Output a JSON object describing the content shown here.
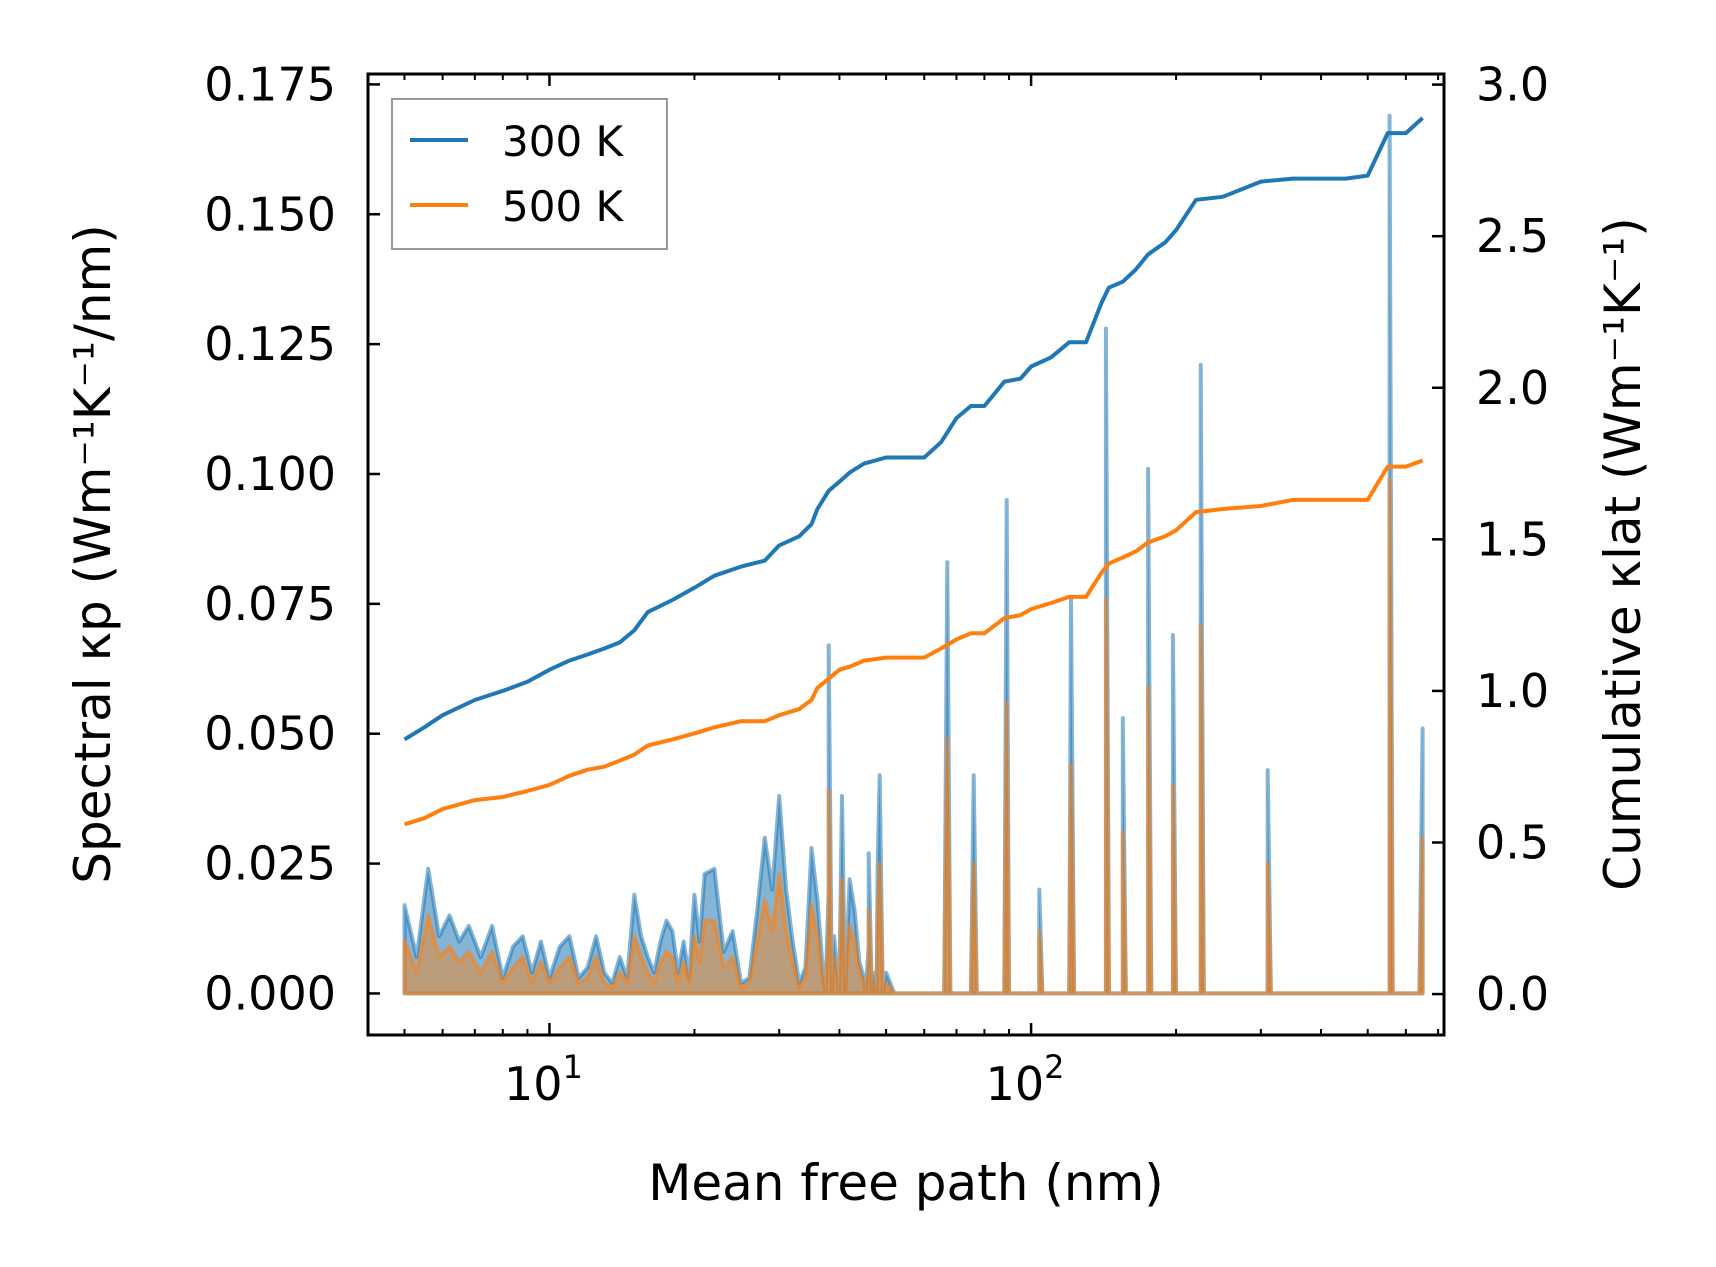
{
  "chart_data": {
    "type": "line",
    "xscale": "log",
    "xlabel": "Mean free path (nm)",
    "ylabel_left": "Spectral κp (Wm⁻¹K⁻¹/nm)",
    "ylabel_right": "Cumulative κlat (Wm⁻¹K⁻¹)",
    "xlim": [
      4.2,
      720
    ],
    "ylim_left": [
      -0.008,
      0.177
    ],
    "ylim_right": [
      -0.135,
      3.035
    ],
    "x_ticks": [
      {
        "value": 10,
        "base": "10",
        "exp": "1"
      },
      {
        "value": 100,
        "base": "10",
        "exp": "2"
      }
    ],
    "y_left_ticks": [
      "0.000",
      "0.025",
      "0.050",
      "0.075",
      "0.100",
      "0.125",
      "0.150",
      "0.175"
    ],
    "y_right_ticks": [
      "0.0",
      "0.5",
      "1.0",
      "1.5",
      "2.0",
      "2.5",
      "3.0"
    ],
    "legend": {
      "position": "top-left",
      "entries": [
        {
          "label": "300 K",
          "color": "#1f77b4"
        },
        {
          "label": "500 K",
          "color": "#ff7f0e"
        }
      ]
    },
    "series": [
      {
        "name": "300 K cumulative",
        "axis": "right",
        "color": "#1f77b4",
        "x": [
          5,
          5.5,
          6,
          7,
          8,
          9,
          10,
          11,
          12,
          13,
          14,
          15,
          16,
          18,
          20,
          22,
          25,
          28,
          30,
          33,
          35,
          36,
          38,
          40,
          42,
          45,
          50,
          55,
          60,
          65,
          70,
          75,
          80,
          88,
          95,
          100,
          110,
          120,
          130,
          140,
          145,
          155,
          165,
          175,
          190,
          200,
          220,
          250,
          300,
          350,
          400,
          450,
          500,
          550,
          600,
          650
        ],
        "y": [
          0.84,
          0.88,
          0.92,
          0.97,
          1.0,
          1.03,
          1.07,
          1.1,
          1.12,
          1.14,
          1.16,
          1.2,
          1.26,
          1.3,
          1.34,
          1.38,
          1.41,
          1.43,
          1.48,
          1.51,
          1.55,
          1.6,
          1.66,
          1.69,
          1.72,
          1.75,
          1.77,
          1.77,
          1.77,
          1.82,
          1.9,
          1.94,
          1.94,
          2.02,
          2.03,
          2.07,
          2.1,
          2.15,
          2.15,
          2.28,
          2.33,
          2.35,
          2.39,
          2.44,
          2.48,
          2.52,
          2.62,
          2.63,
          2.68,
          2.69,
          2.69,
          2.69,
          2.7,
          2.84,
          2.84,
          2.89
        ]
      },
      {
        "name": "500 K cumulative",
        "axis": "right",
        "color": "#ff7f0e",
        "x": [
          5,
          5.5,
          6,
          7,
          8,
          9,
          10,
          11,
          12,
          13,
          14,
          15,
          16,
          18,
          20,
          22,
          25,
          28,
          30,
          33,
          35,
          36,
          38,
          40,
          42,
          45,
          50,
          55,
          60,
          65,
          70,
          75,
          80,
          88,
          95,
          100,
          110,
          120,
          130,
          140,
          145,
          155,
          165,
          175,
          190,
          200,
          220,
          250,
          300,
          350,
          400,
          450,
          500,
          550,
          600,
          650
        ],
        "y": [
          0.56,
          0.58,
          0.61,
          0.64,
          0.65,
          0.67,
          0.69,
          0.72,
          0.74,
          0.75,
          0.77,
          0.79,
          0.82,
          0.84,
          0.86,
          0.88,
          0.9,
          0.9,
          0.92,
          0.94,
          0.97,
          1.01,
          1.04,
          1.07,
          1.08,
          1.1,
          1.11,
          1.11,
          1.11,
          1.14,
          1.17,
          1.19,
          1.19,
          1.24,
          1.25,
          1.27,
          1.29,
          1.31,
          1.31,
          1.39,
          1.42,
          1.44,
          1.46,
          1.49,
          1.51,
          1.53,
          1.59,
          1.6,
          1.61,
          1.63,
          1.63,
          1.63,
          1.63,
          1.74,
          1.74,
          1.76
        ]
      },
      {
        "name": "300 K spectral",
        "axis": "left",
        "color": "#1f77b4",
        "x": [
          5,
          5.3,
          5.6,
          5.9,
          6.2,
          6.5,
          6.8,
          7.2,
          7.6,
          8,
          8.4,
          8.8,
          9.2,
          9.6,
          10,
          10.5,
          11,
          11.5,
          12,
          12.5,
          13,
          13.5,
          14,
          14.5,
          15,
          15.5,
          16,
          16.5,
          17,
          17.5,
          18,
          18.5,
          19,
          19.5,
          20,
          20.5,
          21,
          22,
          23,
          24,
          25,
          26,
          27,
          28,
          29,
          30,
          31,
          32,
          33,
          34,
          35,
          36,
          37,
          38,
          39,
          40,
          41,
          42,
          43,
          44,
          45,
          46,
          47,
          48,
          49,
          50,
          52,
          55,
          60,
          64,
          66,
          68,
          70,
          72,
          75,
          78,
          82,
          86,
          88,
          90,
          95,
          100,
          104,
          110,
          116,
          120,
          125,
          130,
          136,
          140,
          143,
          146,
          150,
          155,
          160,
          165,
          170,
          175,
          180,
          186,
          192,
          197,
          202,
          210,
          218,
          225,
          230,
          240,
          260,
          280,
          300,
          310,
          320,
          340,
          400,
          480,
          540,
          555,
          570,
          590,
          640,
          650
        ],
        "y": [
          0.017,
          0.007,
          0.024,
          0.011,
          0.015,
          0.01,
          0.013,
          0.007,
          0.013,
          0.003,
          0.009,
          0.011,
          0.004,
          0.01,
          0.003,
          0.009,
          0.011,
          0.003,
          0.005,
          0.011,
          0.004,
          0.002,
          0.007,
          0.003,
          0.019,
          0.011,
          0.007,
          0.004,
          0.01,
          0.014,
          0.012,
          0.004,
          0.01,
          0.003,
          0.019,
          0.01,
          0.023,
          0.024,
          0.008,
          0.012,
          0.002,
          0.003,
          0.016,
          0.03,
          0.02,
          0.038,
          0.02,
          0.01,
          0.002,
          0.005,
          0.028,
          0.018,
          0.004,
          0.02,
          0.011,
          0.002,
          0.006,
          0.022,
          0.016,
          0.006,
          0.003,
          0.009,
          0.004,
          0.024,
          0.012,
          0.004,
          0.0,
          0.0,
          0.0,
          0.0,
          0.0,
          0.0,
          0.0,
          0.0,
          0.0,
          0.0,
          0.0,
          0.0,
          0.0,
          0.0,
          0.0,
          0.0,
          0.0,
          0.0,
          0.0,
          0.0,
          0.0,
          0.0,
          0.0,
          0.0,
          0.0,
          0.0,
          0.0,
          0.0,
          0.0,
          0.0,
          0.0,
          0.0,
          0.0,
          0.0,
          0.0,
          0.0,
          0.0,
          0.0,
          0.0,
          0.0,
          0.0,
          0.0,
          0.0,
          0.0,
          0.0,
          0.0,
          0.0,
          0.0,
          0.0,
          0.0,
          0.0,
          0.0,
          0.0,
          0.0,
          0.0,
          0.051
        ]
      },
      {
        "name": "500 K spectral",
        "axis": "left",
        "color": "#ff7f0e",
        "x": [
          5,
          5.3,
          5.6,
          5.9,
          6.2,
          6.5,
          6.8,
          7.2,
          7.6,
          8,
          8.4,
          8.8,
          9.2,
          9.6,
          10,
          10.5,
          11,
          11.5,
          12,
          12.5,
          13,
          13.5,
          14,
          14.5,
          15,
          15.5,
          16,
          16.5,
          17,
          17.5,
          18,
          18.5,
          19,
          19.5,
          20,
          20.5,
          21,
          22,
          23,
          24,
          25,
          26,
          27,
          28,
          29,
          30,
          31,
          32,
          33,
          34,
          35,
          36,
          37,
          38,
          39,
          40,
          41,
          42,
          43,
          44,
          45,
          46,
          47,
          48,
          49,
          50,
          52,
          55,
          60,
          64,
          66,
          68,
          70,
          72,
          75,
          78,
          82,
          86,
          88,
          90,
          95,
          100,
          104,
          110,
          116,
          120,
          125,
          130,
          136,
          140,
          143,
          146,
          150,
          155,
          160,
          165,
          170,
          175,
          180,
          186,
          192,
          197,
          202,
          210,
          218,
          225,
          230,
          240,
          260,
          280,
          300,
          310,
          320,
          340,
          400,
          480,
          540,
          555,
          570,
          590,
          640,
          650
        ],
        "y": [
          0.01,
          0.004,
          0.015,
          0.007,
          0.009,
          0.006,
          0.008,
          0.004,
          0.008,
          0.002,
          0.005,
          0.007,
          0.002,
          0.006,
          0.002,
          0.005,
          0.007,
          0.002,
          0.003,
          0.007,
          0.002,
          0.001,
          0.004,
          0.002,
          0.011,
          0.007,
          0.004,
          0.002,
          0.006,
          0.008,
          0.007,
          0.002,
          0.006,
          0.002,
          0.011,
          0.006,
          0.014,
          0.014,
          0.005,
          0.007,
          0.001,
          0.002,
          0.01,
          0.018,
          0.012,
          0.023,
          0.012,
          0.006,
          0.001,
          0.003,
          0.017,
          0.011,
          0.002,
          0.012,
          0.007,
          0.001,
          0.004,
          0.013,
          0.01,
          0.004,
          0.002,
          0.005,
          0.002,
          0.014,
          0.007,
          0.002,
          0.0,
          0.0,
          0.0,
          0.0,
          0.0,
          0.0,
          0.0,
          0.0,
          0.0,
          0.0,
          0.0,
          0.0,
          0.0,
          0.0,
          0.0,
          0.0,
          0.0,
          0.0,
          0.0,
          0.0,
          0.0,
          0.0,
          0.0,
          0.0,
          0.0,
          0.0,
          0.0,
          0.0,
          0.0,
          0.0,
          0.0,
          0.0,
          0.0,
          0.0,
          0.0,
          0.0,
          0.0,
          0.0,
          0.0,
          0.0,
          0.0,
          0.0,
          0.0,
          0.0,
          0.0,
          0.0,
          0.0,
          0.0,
          0.0,
          0.0,
          0.0,
          0.0,
          0.0,
          0.0,
          0.0,
          0.03
        ]
      }
    ],
    "spikes": [
      {
        "x": 38,
        "y300": 0.067,
        "y500": 0.039
      },
      {
        "x": 40.5,
        "y300": 0.038,
        "y500": 0.022
      },
      {
        "x": 46,
        "y300": 0.027,
        "y500": 0.016
      },
      {
        "x": 48.5,
        "y300": 0.042,
        "y500": 0.025
      },
      {
        "x": 67,
        "y300": 0.083,
        "y500": 0.049
      },
      {
        "x": 76,
        "y300": 0.042,
        "y500": 0.025
      },
      {
        "x": 89,
        "y300": 0.095,
        "y500": 0.056
      },
      {
        "x": 104,
        "y300": 0.02,
        "y500": 0.012
      },
      {
        "x": 121,
        "y300": 0.076,
        "y500": 0.044
      },
      {
        "x": 143,
        "y300": 0.128,
        "y500": 0.076
      },
      {
        "x": 155,
        "y300": 0.053,
        "y500": 0.031
      },
      {
        "x": 175,
        "y300": 0.101,
        "y500": 0.059
      },
      {
        "x": 197,
        "y300": 0.069,
        "y500": 0.04
      },
      {
        "x": 225,
        "y300": 0.121,
        "y500": 0.071
      },
      {
        "x": 310,
        "y300": 0.043,
        "y500": 0.025
      },
      {
        "x": 555,
        "y300": 0.169,
        "y500": 0.099
      }
    ]
  }
}
